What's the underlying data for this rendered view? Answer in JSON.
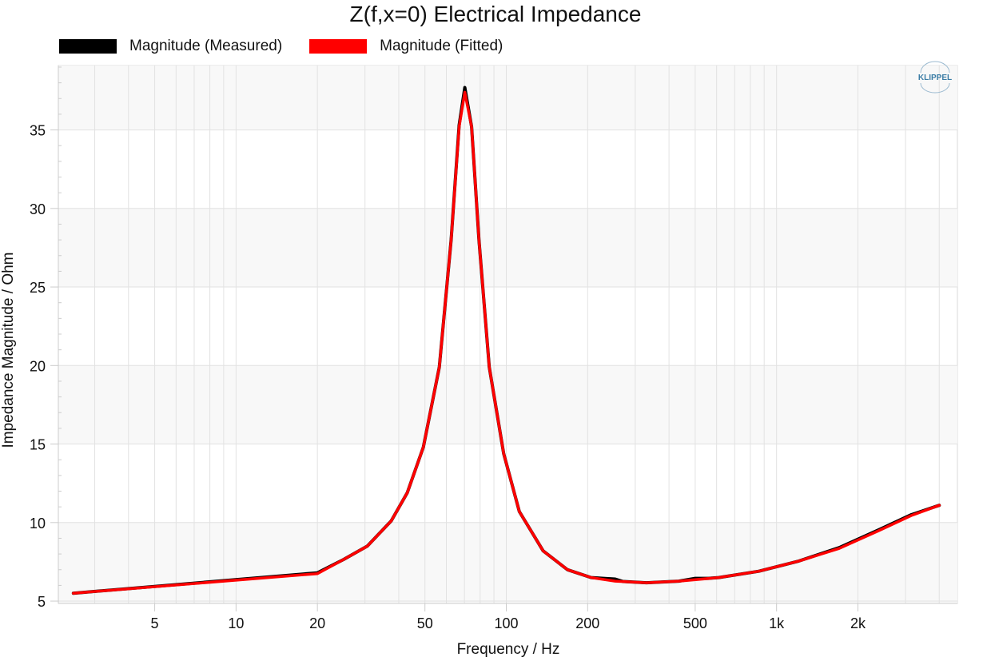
{
  "chart_data": {
    "type": "line",
    "title": "Z(f,x=0) Electrical Impedance",
    "xlabel": "Frequency / Hz",
    "ylabel": "Impedance Magnitude / Ohm",
    "xscale": "log",
    "xlim": [
      2.2,
      4670
    ],
    "ylim": [
      4.85,
      39.1
    ],
    "grid": true,
    "legend_position": "top-left",
    "x_ticks": [
      {
        "v": 5,
        "label": "5"
      },
      {
        "v": 10,
        "label": "10"
      },
      {
        "v": 20,
        "label": "20"
      },
      {
        "v": 50,
        "label": "50"
      },
      {
        "v": 100,
        "label": "100"
      },
      {
        "v": 200,
        "label": "200"
      },
      {
        "v": 500,
        "label": "500"
      },
      {
        "v": 1000,
        "label": "1k"
      },
      {
        "v": 2000,
        "label": "2k"
      }
    ],
    "y_ticks": [
      {
        "v": 5,
        "label": "5"
      },
      {
        "v": 10,
        "label": "10"
      },
      {
        "v": 15,
        "label": "15"
      },
      {
        "v": 20,
        "label": "20"
      },
      {
        "v": 25,
        "label": "25"
      },
      {
        "v": 30,
        "label": "30"
      },
      {
        "v": 35,
        "label": "35"
      }
    ],
    "series": [
      {
        "name": "Magnitude (Measured)",
        "color": "#000000",
        "x": [
          2.5,
          20,
          25,
          30.6,
          37.5,
          43,
          49.3,
          56.5,
          62.5,
          66.9,
          70.2,
          74.4,
          79.2,
          86.5,
          97.8,
          111.7,
          136.9,
          168.5,
          206,
          253,
          270,
          330,
          435,
          500,
          560,
          611,
          860,
          1210,
          1705,
          2400,
          3150,
          4000
        ],
        "y": [
          5.5,
          6.8,
          7.65,
          8.5,
          10.1,
          11.9,
          14.8,
          19.9,
          28.0,
          35.3,
          37.7,
          35.2,
          28.0,
          19.9,
          14.4,
          10.7,
          8.2,
          7.0,
          6.5,
          6.4,
          6.25,
          6.17,
          6.27,
          6.45,
          6.45,
          6.5,
          6.9,
          7.55,
          8.4,
          9.55,
          10.5,
          11.1
        ]
      },
      {
        "name": "Magnitude (Fitted)",
        "color": "#ff0000",
        "x": [
          2.5,
          20,
          25,
          30.6,
          37.5,
          43,
          49.3,
          56.5,
          62.5,
          66.9,
          70.2,
          74.4,
          79.2,
          86.5,
          97.8,
          111.7,
          136.9,
          168.5,
          206,
          253,
          330,
          435,
          611,
          860,
          1210,
          1705,
          2400,
          3150,
          4000
        ],
        "y": [
          5.5,
          6.75,
          7.65,
          8.5,
          10.1,
          11.9,
          14.8,
          19.9,
          28.0,
          35.2,
          37.4,
          35.2,
          28.0,
          19.9,
          14.4,
          10.7,
          8.2,
          7.0,
          6.5,
          6.27,
          6.17,
          6.27,
          6.5,
          6.9,
          7.55,
          8.35,
          9.5,
          10.45,
          11.1
        ]
      }
    ]
  },
  "logo_text": "KLIPPEL"
}
